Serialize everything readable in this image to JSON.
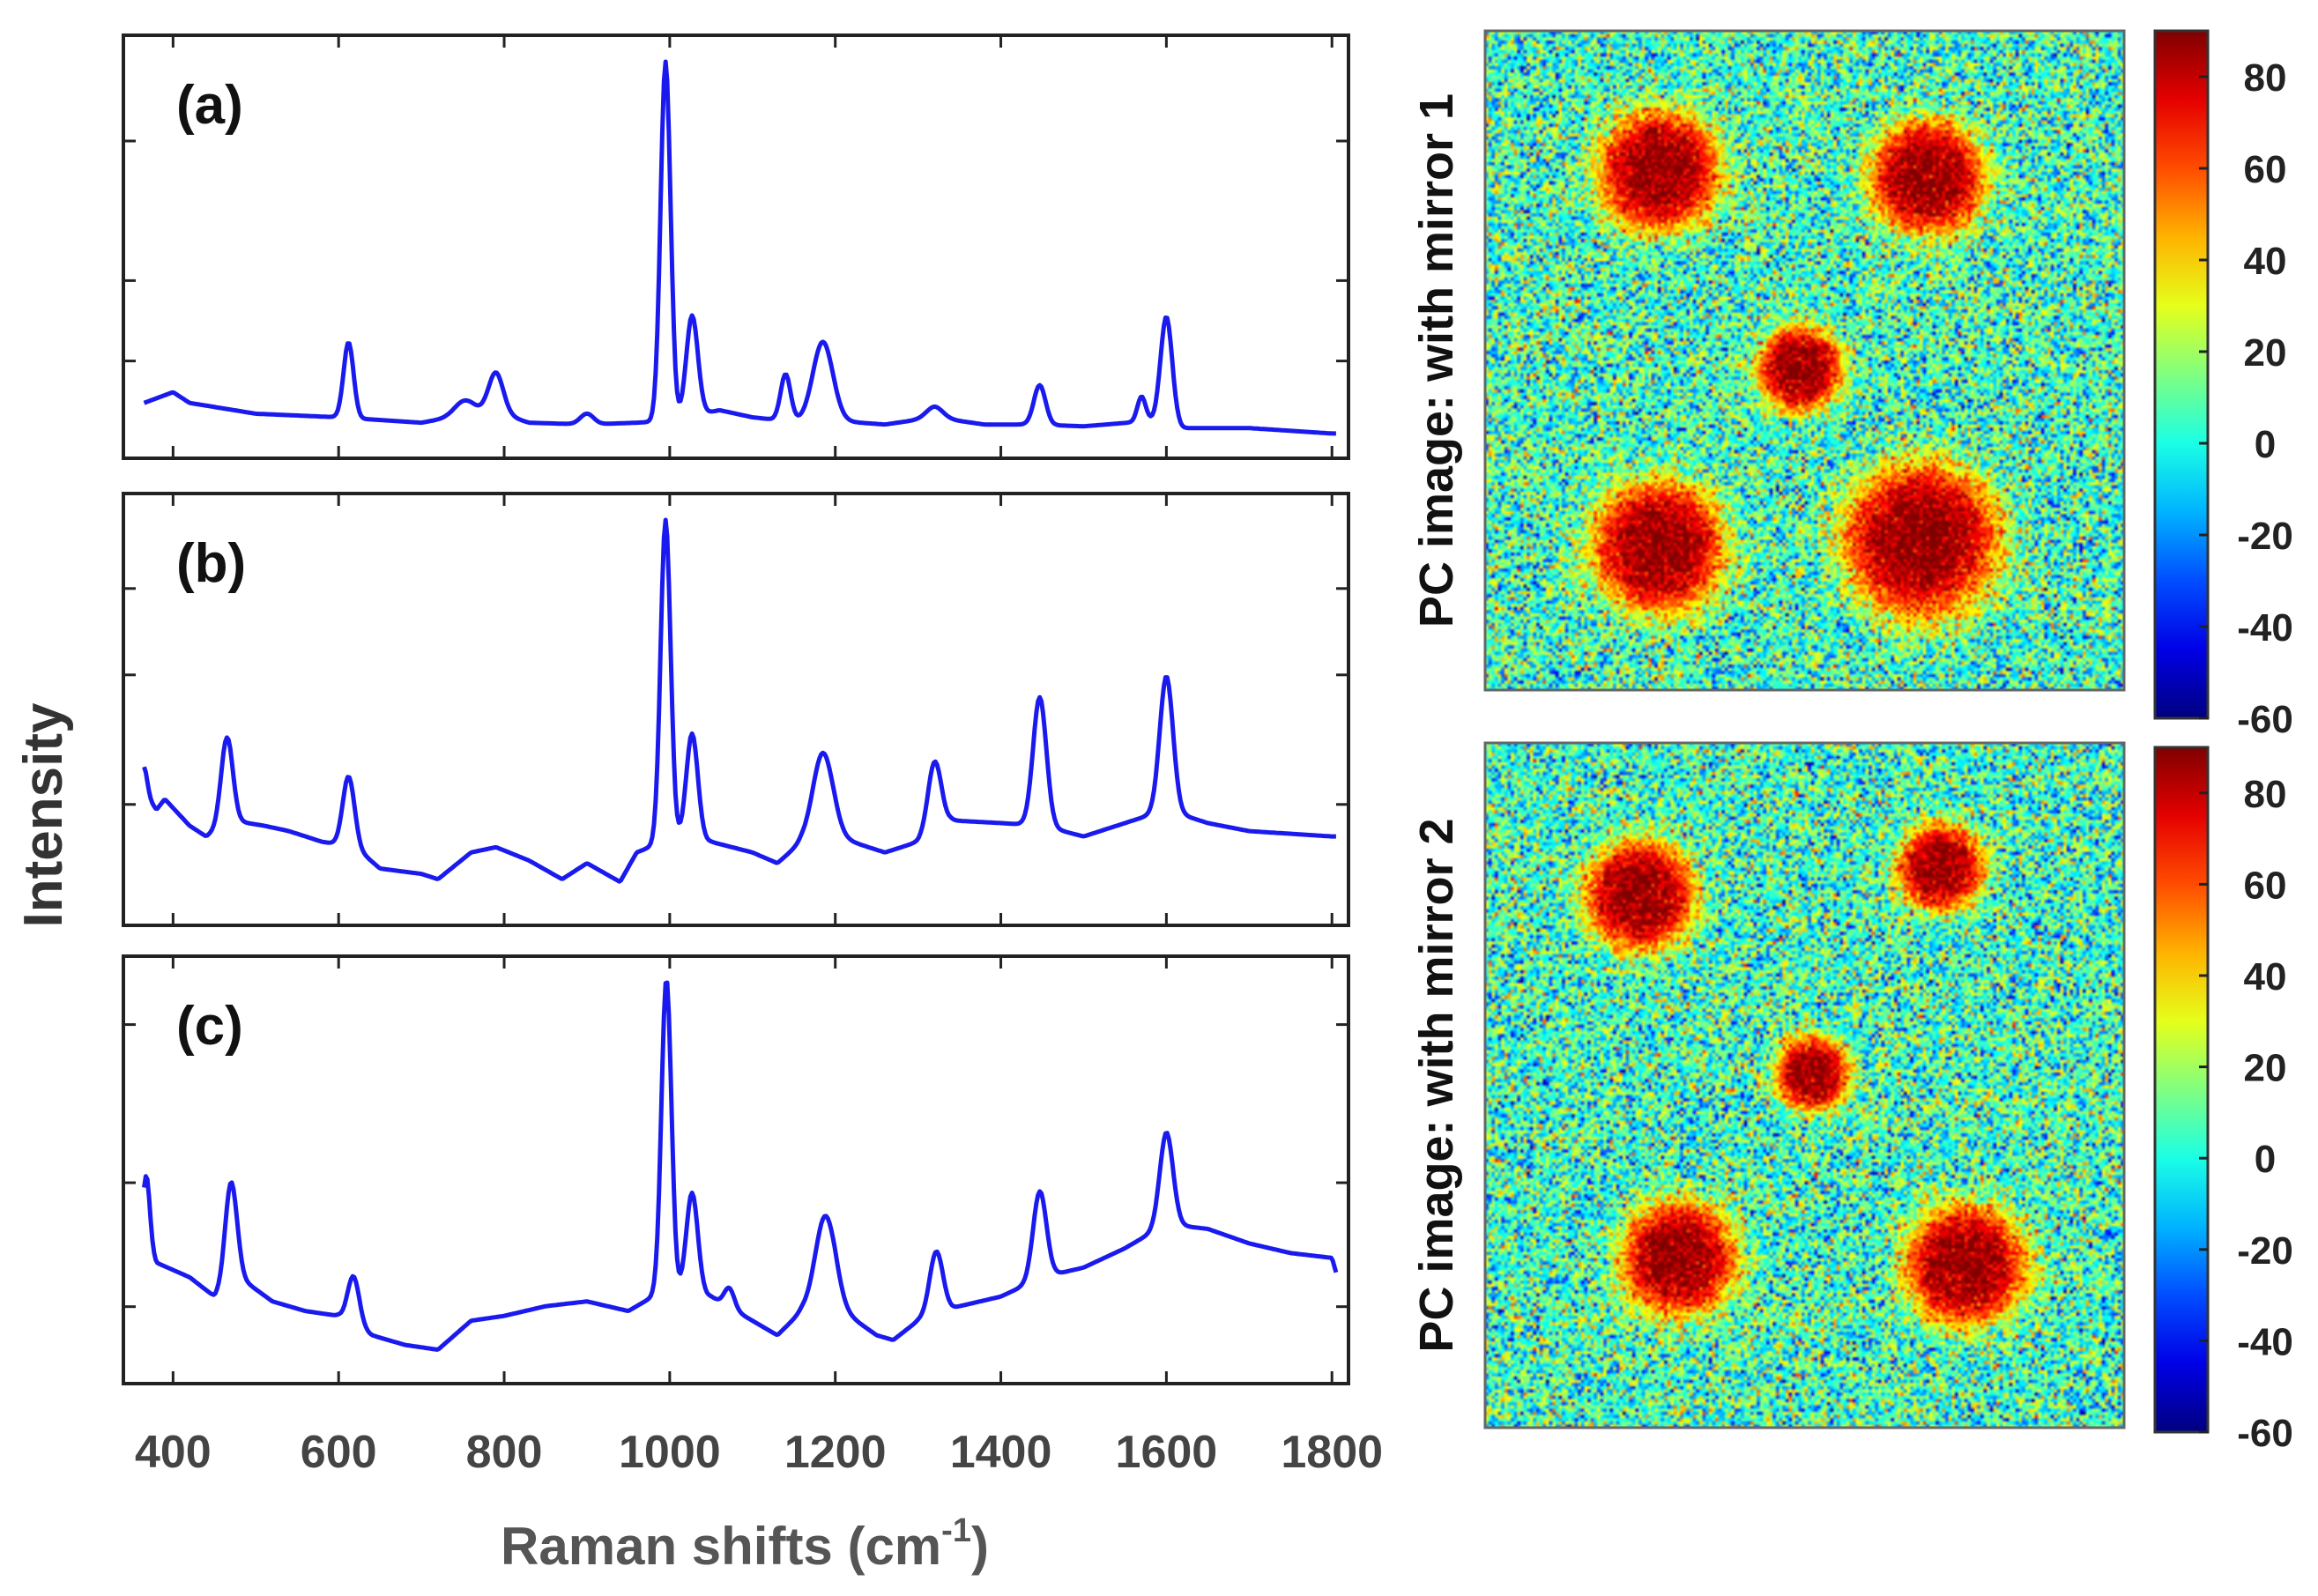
{
  "chart_data": {
    "spectra": {
      "type": "line",
      "ylabel": "Intensity",
      "xlabel": "Raman shifts (cm",
      "xlabel_sup": "-1",
      "xlabel_close": ")",
      "xlim": [
        340,
        1820
      ],
      "xticks": [
        400,
        600,
        800,
        1000,
        1200,
        1400,
        1600,
        1800
      ],
      "color": "#1a1aee",
      "panels": [
        {
          "label": "(a)",
          "baseline": [
            [
              365,
              0.1
            ],
            [
              400,
              0.13
            ],
            [
              420,
              0.1
            ],
            [
              500,
              0.07
            ],
            [
              600,
              0.06
            ],
            [
              700,
              0.045
            ],
            [
              760,
              0.07
            ],
            [
              790,
              0.075
            ],
            [
              830,
              0.045
            ],
            [
              900,
              0.04
            ],
            [
              960,
              0.045
            ],
            [
              1000,
              0.05
            ],
            [
              1060,
              0.08
            ],
            [
              1100,
              0.06
            ],
            [
              1140,
              0.05
            ],
            [
              1200,
              0.05
            ],
            [
              1260,
              0.04
            ],
            [
              1320,
              0.06
            ],
            [
              1380,
              0.04
            ],
            [
              1440,
              0.04
            ],
            [
              1500,
              0.035
            ],
            [
              1580,
              0.05
            ],
            [
              1620,
              0.03
            ],
            [
              1700,
              0.03
            ],
            [
              1800,
              0.015
            ]
          ],
          "peaks": [
            [
              612,
              0.21,
              6
            ],
            [
              752,
              0.04,
              12
            ],
            [
              790,
              0.11,
              9
            ],
            [
              900,
              0.03,
              8
            ],
            [
              995,
              1.0,
              6
            ],
            [
              1027,
              0.28,
              7
            ],
            [
              1140,
              0.13,
              6
            ],
            [
              1185,
              0.22,
              12
            ],
            [
              1320,
              0.03,
              10
            ],
            [
              1447,
              0.11,
              7
            ],
            [
              1570,
              0.07,
              5
            ],
            [
              1600,
              0.3,
              7
            ]
          ]
        },
        {
          "label": "(b)",
          "baseline": [
            [
              365,
              0.42
            ],
            [
              380,
              0.36
            ],
            [
              390,
              0.4
            ],
            [
              420,
              0.3
            ],
            [
              440,
              0.26
            ],
            [
              470,
              0.32
            ],
            [
              510,
              0.3
            ],
            [
              540,
              0.28
            ],
            [
              580,
              0.24
            ],
            [
              620,
              0.22
            ],
            [
              650,
              0.14
            ],
            [
              700,
              0.12
            ],
            [
              720,
              0.1
            ],
            [
              760,
              0.2
            ],
            [
              790,
              0.22
            ],
            [
              830,
              0.17
            ],
            [
              870,
              0.1
            ],
            [
              900,
              0.16
            ],
            [
              940,
              0.09
            ],
            [
              960,
              0.2
            ],
            [
              1000,
              0.25
            ],
            [
              1050,
              0.24
            ],
            [
              1100,
              0.2
            ],
            [
              1130,
              0.16
            ],
            [
              1160,
              0.24
            ],
            [
              1200,
              0.26
            ],
            [
              1260,
              0.2
            ],
            [
              1300,
              0.24
            ],
            [
              1340,
              0.32
            ],
            [
              1400,
              0.31
            ],
            [
              1450,
              0.3
            ],
            [
              1500,
              0.26
            ],
            [
              1560,
              0.32
            ],
            [
              1600,
              0.36
            ],
            [
              1650,
              0.31
            ],
            [
              1700,
              0.28
            ],
            [
              1750,
              0.27
            ],
            [
              1800,
              0.26
            ]
          ],
          "peaks": [
            [
              365,
              0.1,
              4
            ],
            [
              465,
              0.32,
              7
            ],
            [
              612,
              0.26,
              7
            ],
            [
              995,
              1.2,
              6
            ],
            [
              1027,
              0.4,
              7
            ],
            [
              1185,
              0.32,
              12
            ],
            [
              1320,
              0.26,
              8
            ],
            [
              1447,
              0.48,
              8
            ],
            [
              1600,
              0.5,
              8
            ]
          ]
        },
        {
          "label": "(c)",
          "baseline": [
            [
              365,
              0.52
            ],
            [
              380,
              0.42
            ],
            [
              420,
              0.36
            ],
            [
              450,
              0.28
            ],
            [
              480,
              0.36
            ],
            [
              520,
              0.26
            ],
            [
              560,
              0.22
            ],
            [
              600,
              0.2
            ],
            [
              640,
              0.12
            ],
            [
              680,
              0.08
            ],
            [
              720,
              0.06
            ],
            [
              760,
              0.18
            ],
            [
              800,
              0.2
            ],
            [
              850,
              0.24
            ],
            [
              900,
              0.26
            ],
            [
              950,
              0.22
            ],
            [
              980,
              0.28
            ],
            [
              1000,
              0.3
            ],
            [
              1050,
              0.28
            ],
            [
              1100,
              0.18
            ],
            [
              1130,
              0.12
            ],
            [
              1160,
              0.22
            ],
            [
              1200,
              0.24
            ],
            [
              1250,
              0.12
            ],
            [
              1270,
              0.1
            ],
            [
              1300,
              0.18
            ],
            [
              1350,
              0.24
            ],
            [
              1400,
              0.28
            ],
            [
              1450,
              0.36
            ],
            [
              1500,
              0.4
            ],
            [
              1550,
              0.48
            ],
            [
              1600,
              0.58
            ],
            [
              1650,
              0.56
            ],
            [
              1700,
              0.5
            ],
            [
              1750,
              0.46
            ],
            [
              1800,
              0.44
            ],
            [
              1805,
              0.38
            ]
          ],
          "peaks": [
            [
              368,
              0.28,
              4
            ],
            [
              470,
              0.42,
              7
            ],
            [
              618,
              0.2,
              7
            ],
            [
              996,
              1.3,
              6
            ],
            [
              1027,
              0.42,
              7
            ],
            [
              1072,
              0.08,
              6
            ],
            [
              1188,
              0.38,
              12
            ],
            [
              1322,
              0.26,
              8
            ],
            [
              1447,
              0.36,
              8
            ],
            [
              1600,
              0.38,
              8
            ]
          ]
        }
      ]
    },
    "maps": {
      "type": "heatmap",
      "colormap": "jet",
      "clim": [
        -60,
        90
      ],
      "colorbar_ticks": [
        80,
        60,
        40,
        20,
        0,
        -20,
        -40,
        -60
      ],
      "panels": [
        {
          "label": "PC image: with mirror 1",
          "spots": [
            [
              0.27,
              0.21,
              0.105
            ],
            [
              0.69,
              0.22,
              0.1
            ],
            [
              0.49,
              0.51,
              0.075
            ],
            [
              0.27,
              0.78,
              0.115
            ],
            [
              0.68,
              0.77,
              0.135
            ]
          ]
        },
        {
          "label": "PC image: with mirror 2",
          "spots": [
            [
              0.24,
              0.22,
              0.095
            ],
            [
              0.71,
              0.18,
              0.075
            ],
            [
              0.51,
              0.48,
              0.065
            ],
            [
              0.3,
              0.75,
              0.1
            ],
            [
              0.75,
              0.76,
              0.105
            ]
          ]
        }
      ]
    }
  }
}
